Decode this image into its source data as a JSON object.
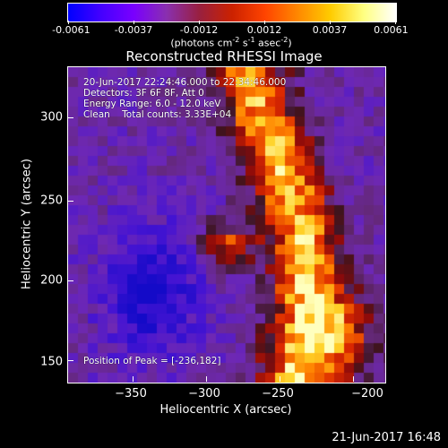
{
  "colorbar": {
    "tick_labels": [
      "-0.0061",
      "-0.0037",
      "-0.0012",
      "0.0012",
      "0.0037",
      "0.0061"
    ],
    "unit_prefix": "(photons cm",
    "unit_exp1": "-2",
    "unit_mid1": " s",
    "unit_exp2": "-1",
    "unit_mid2": " asec",
    "unit_exp3": "-2",
    "unit_suffix": ")",
    "colors": [
      "#0000ff",
      "#4400ff",
      "#7a00ff",
      "#8a30b0",
      "#992040",
      "#cc2200",
      "#ff4400",
      "#ff8800",
      "#ffcc00",
      "#ffff80",
      "#ffffff"
    ]
  },
  "title": "Reconstructed RHESSI Image",
  "annotations": {
    "line1": "20-Jun-2017 22:24:46.000 to 22:34:46.000",
    "line2": "Detectors: 3F 6F 8F, Att 0",
    "line3": "Energy Range: 6.0 - 12.0 keV",
    "line4": "Clean    Total counts: 3.33E+04",
    "peak": "Position of Peak = [-236,182]"
  },
  "axes": {
    "x_title": "Heliocentric X (arcsec)",
    "y_title": "Heliocentric Y (arcsec)",
    "x_ticks": [
      "−350",
      "−300",
      "−250",
      "−200"
    ],
    "y_ticks": [
      "150",
      "200",
      "250",
      "300"
    ]
  },
  "timestamp": "21-Jun-2017 16:48"
}
